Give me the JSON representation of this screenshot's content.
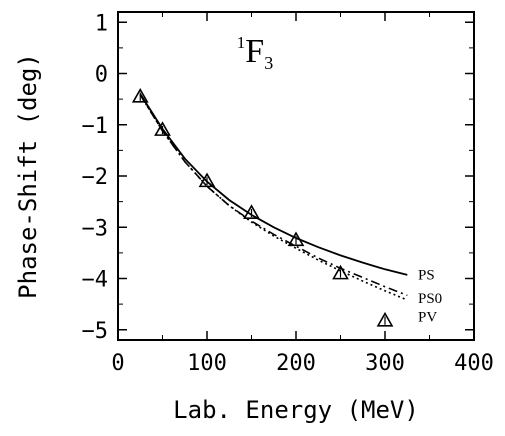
{
  "chart_data": {
    "type": "line",
    "title": {
      "sup": "1",
      "main": "F",
      "sub": "3"
    },
    "xlabel": "Lab. Energy (MeV)",
    "ylabel": "Phase-Shift (deg)",
    "xlim": [
      0,
      400
    ],
    "ylim": [
      -5.2,
      1.2
    ],
    "x_ticks": [
      0,
      100,
      200,
      300,
      400
    ],
    "y_ticks": [
      1,
      0,
      -1,
      -2,
      -3,
      -4,
      -5
    ],
    "x_tick_labels": [
      "0",
      "100",
      "200",
      "300",
      "400"
    ],
    "y_tick_labels": [
      "1",
      "0",
      "−1",
      "−2",
      "−3",
      "−4",
      "−5"
    ],
    "grid": false,
    "series": [
      {
        "name": "PS",
        "style": "solid",
        "x": [
          25,
          50,
          75,
          100,
          125,
          150,
          175,
          200,
          225,
          250,
          275,
          300,
          325
        ],
        "y": [
          -0.4,
          -1.08,
          -1.66,
          -2.11,
          -2.47,
          -2.76,
          -3.0,
          -3.21,
          -3.39,
          -3.55,
          -3.69,
          -3.82,
          -3.93
        ]
      },
      {
        "name": "PS0",
        "style": "dash-dot",
        "x": [
          25,
          50,
          75,
          100,
          125,
          150,
          175,
          200,
          225,
          250,
          275,
          300,
          325
        ],
        "y": [
          -0.42,
          -1.12,
          -1.72,
          -2.2,
          -2.58,
          -2.88,
          -3.14,
          -3.37,
          -3.6,
          -3.8,
          -3.98,
          -4.16,
          -4.33
        ]
      },
      {
        "name": "PV",
        "style": "dotted",
        "x": [
          25,
          50,
          75,
          100,
          125,
          150,
          175,
          200,
          225,
          250,
          275,
          300,
          325
        ],
        "y": [
          -0.42,
          -1.12,
          -1.72,
          -2.2,
          -2.58,
          -2.9,
          -3.17,
          -3.41,
          -3.64,
          -3.85,
          -4.05,
          -4.24,
          -4.42
        ]
      }
    ],
    "points": {
      "marker": "triangle",
      "x": [
        25,
        50,
        100,
        150,
        200,
        250,
        300
      ],
      "y": [
        -0.45,
        -1.1,
        -2.1,
        -2.72,
        -3.25,
        -3.9,
        -4.82
      ]
    },
    "legend_labels": [
      {
        "text": "PS",
        "x": 330,
        "y": -3.92
      },
      {
        "text": "PS0",
        "x": 330,
        "y": -4.38
      },
      {
        "text": "PV",
        "x": 330,
        "y": -4.74
      }
    ]
  }
}
